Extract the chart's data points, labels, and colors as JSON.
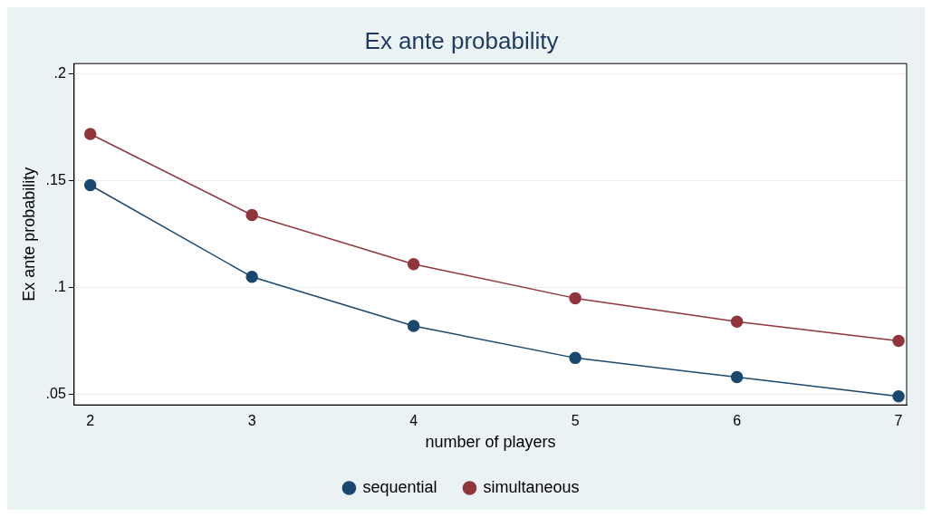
{
  "chart_data": {
    "type": "line",
    "title": "Ex ante probability",
    "xlabel": "number of players",
    "ylabel": "Ex ante probability",
    "x": [
      2,
      3,
      4,
      5,
      6,
      7
    ],
    "series": [
      {
        "name": "sequential",
        "color": "#1a476f",
        "values": [
          0.148,
          0.105,
          0.082,
          0.067,
          0.058,
          0.049
        ]
      },
      {
        "name": "simultaneous",
        "color": "#90353b",
        "values": [
          0.172,
          0.134,
          0.111,
          0.095,
          0.084,
          0.075
        ]
      }
    ],
    "xlim": [
      1.9,
      7.05
    ],
    "xticks": [
      2,
      3,
      4,
      5,
      6,
      7
    ],
    "ylim": [
      0.045,
      0.205
    ],
    "yticks": [
      {
        "value": 0.05,
        "label": ".05"
      },
      {
        "value": 0.1,
        "label": ".1"
      },
      {
        "value": 0.15,
        "label": ".15"
      },
      {
        "value": 0.2,
        "label": ".2"
      }
    ],
    "grid": "y",
    "legend": "bottom",
    "marker": "circle",
    "line_style": "solid"
  }
}
